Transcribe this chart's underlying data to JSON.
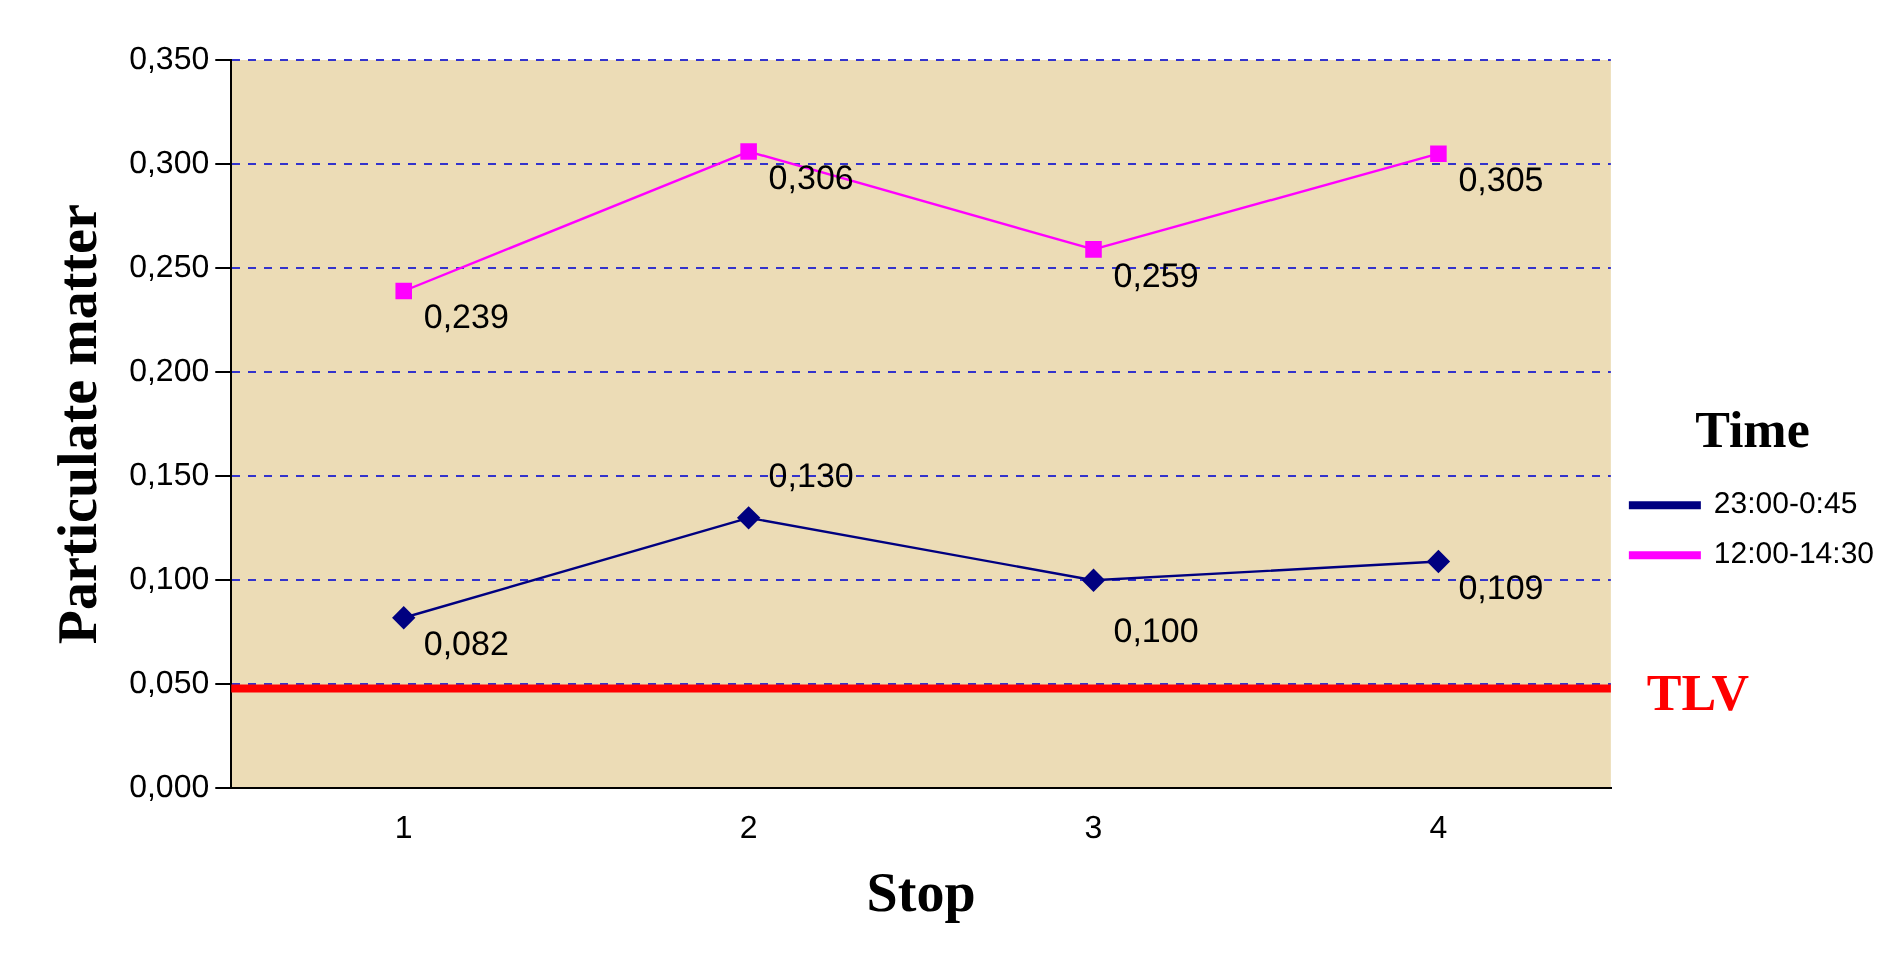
{
  "chart_data": {
    "type": "line",
    "xlabel": "Stop",
    "ylabel": "Particulate matter",
    "legend_title": "Time",
    "categories": [
      "1",
      "2",
      "3",
      "4"
    ],
    "series": [
      {
        "name": "23:00-0:45",
        "color": "#000080",
        "marker": "diamond",
        "values": [
          0.082,
          0.13,
          0.1,
          0.109
        ],
        "value_labels": [
          "0,082",
          "0,130",
          "0,100",
          "0,109"
        ]
      },
      {
        "name": "12:00-14:30",
        "color": "#ff00ff",
        "marker": "square",
        "values": [
          0.239,
          0.306,
          0.259,
          0.305
        ],
        "value_labels": [
          "0,239",
          "0,306",
          "0,259",
          "0,305"
        ]
      }
    ],
    "ylim": [
      0,
      0.35
    ],
    "yticks": [
      {
        "value": 0,
        "label": "0,000"
      },
      {
        "value": 0.05,
        "label": "0,050"
      },
      {
        "value": 0.1,
        "label": "0,100"
      },
      {
        "value": 0.15,
        "label": "0,150"
      },
      {
        "value": 0.2,
        "label": "0,200"
      },
      {
        "value": 0.25,
        "label": "0,250"
      },
      {
        "value": 0.3,
        "label": "0,300"
      },
      {
        "value": 0.35,
        "label": "0,350"
      }
    ],
    "ref_lines": [
      {
        "axis": "y",
        "value": 0.048,
        "label": "TLV",
        "color": "#ff0000"
      }
    ],
    "grid": "y",
    "legend": "right"
  }
}
